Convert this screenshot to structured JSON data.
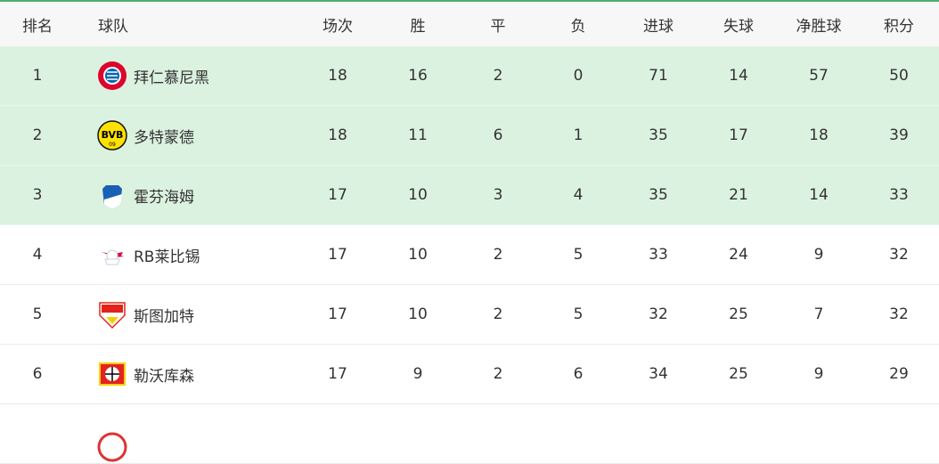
{
  "headers": {
    "rank": "排名",
    "team": "球队",
    "played": "场次",
    "won": "胜",
    "drawn": "平",
    "lost": "负",
    "gf": "进球",
    "ga": "失球",
    "gd": "净胜球",
    "pts": "积分"
  },
  "highlight_color": "#dcf2e0",
  "rows": [
    {
      "rank": "1",
      "team": "拜仁慕尼黑",
      "logo": "bayern-logo",
      "played": "18",
      "won": "16",
      "drawn": "2",
      "lost": "0",
      "gf": "71",
      "ga": "14",
      "gd": "57",
      "pts": "50"
    },
    {
      "rank": "2",
      "team": "多特蒙德",
      "logo": "bvb-logo",
      "played": "18",
      "won": "11",
      "drawn": "6",
      "lost": "1",
      "gf": "35",
      "ga": "17",
      "gd": "18",
      "pts": "39"
    },
    {
      "rank": "3",
      "team": "霍芬海姆",
      "logo": "hoffenheim-logo",
      "played": "17",
      "won": "10",
      "drawn": "3",
      "lost": "4",
      "gf": "35",
      "ga": "21",
      "gd": "14",
      "pts": "33"
    },
    {
      "rank": "4",
      "team": "RB莱比锡",
      "logo": "leipzig-logo",
      "played": "17",
      "won": "10",
      "drawn": "2",
      "lost": "5",
      "gf": "33",
      "ga": "24",
      "gd": "9",
      "pts": "32"
    },
    {
      "rank": "5",
      "team": "斯图加特",
      "logo": "stuttgart-logo",
      "played": "17",
      "won": "10",
      "drawn": "2",
      "lost": "5",
      "gf": "32",
      "ga": "25",
      "gd": "7",
      "pts": "32"
    },
    {
      "rank": "6",
      "team": "勒沃库森",
      "logo": "leverkusen-logo",
      "played": "17",
      "won": "9",
      "drawn": "2",
      "lost": "6",
      "gf": "34",
      "ga": "25",
      "gd": "9",
      "pts": "29"
    }
  ]
}
